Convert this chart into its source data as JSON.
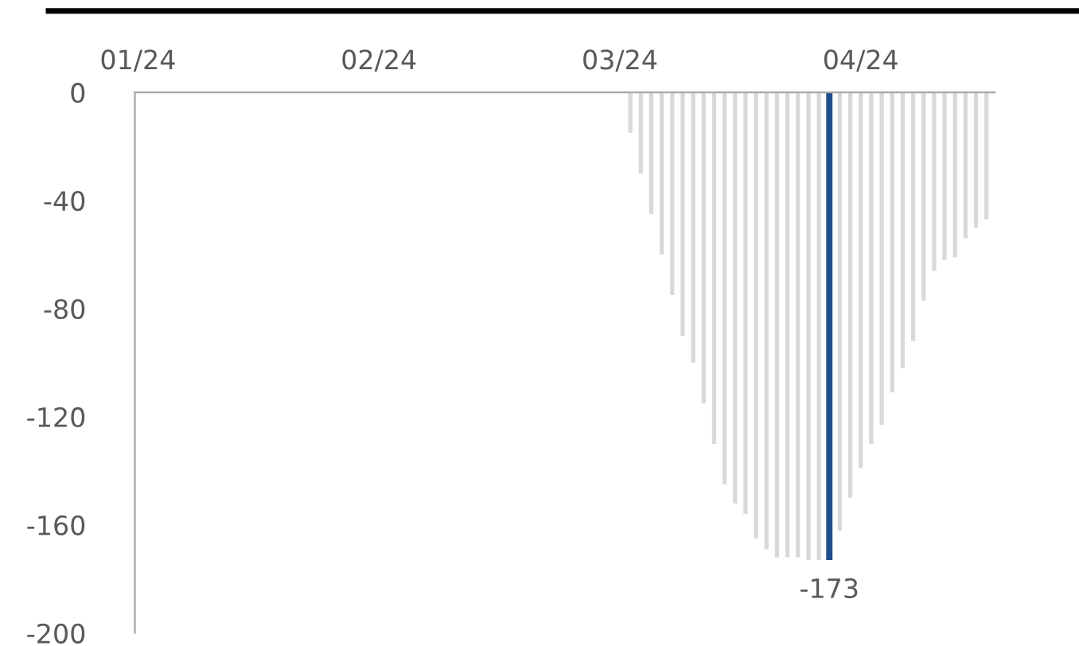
{
  "chart_data": {
    "type": "bar",
    "categories": [
      "01/24",
      null,
      null,
      null,
      null,
      null,
      null,
      null,
      null,
      null,
      null,
      null,
      null,
      null,
      null,
      null,
      null,
      null,
      null,
      null,
      null,
      null,
      null,
      "02/24",
      null,
      null,
      null,
      null,
      null,
      null,
      null,
      null,
      null,
      null,
      null,
      null,
      null,
      null,
      null,
      null,
      null,
      null,
      null,
      null,
      null,
      null,
      "03/24",
      null,
      null,
      null,
      null,
      null,
      null,
      null,
      null,
      null,
      null,
      null,
      null,
      null,
      null,
      null,
      null,
      null,
      null,
      null,
      null,
      null,
      null,
      "04/24",
      null,
      null,
      null,
      null,
      null,
      null,
      null,
      null,
      null,
      null,
      null,
      null
    ],
    "values": [
      null,
      null,
      null,
      null,
      null,
      null,
      null,
      null,
      null,
      null,
      null,
      null,
      null,
      null,
      null,
      null,
      null,
      null,
      null,
      null,
      null,
      null,
      null,
      null,
      null,
      null,
      null,
      null,
      null,
      null,
      null,
      null,
      null,
      null,
      null,
      null,
      null,
      null,
      null,
      null,
      null,
      null,
      null,
      null,
      null,
      null,
      null,
      -15,
      -30,
      -45,
      -60,
      -75,
      -90,
      -100,
      -115,
      -130,
      -145,
      -152,
      -156,
      -165,
      -169,
      -172,
      -172,
      -172,
      -173,
      -173,
      -173,
      -162,
      -150,
      -139,
      -130,
      -123,
      -111,
      -102,
      -92,
      -77,
      -66,
      -62,
      -61,
      -54,
      -50,
      -47
    ],
    "colors": [
      "#d9d9d9",
      "#d9d9d9",
      "#d9d9d9",
      "#d9d9d9",
      "#d9d9d9",
      "#d9d9d9",
      "#d9d9d9",
      "#d9d9d9",
      "#d9d9d9",
      "#d9d9d9",
      "#d9d9d9",
      "#d9d9d9",
      "#d9d9d9",
      "#d9d9d9",
      "#d9d9d9",
      "#d9d9d9",
      "#d9d9d9",
      "#d9d9d9",
      "#d9d9d9",
      "#d9d9d9",
      "#d9d9d9",
      "#d9d9d9",
      "#d9d9d9",
      "#d9d9d9",
      "#d9d9d9",
      "#d9d9d9",
      "#d9d9d9",
      "#d9d9d9",
      "#d9d9d9",
      "#d9d9d9",
      "#d9d9d9",
      "#d9d9d9",
      "#d9d9d9",
      "#d9d9d9",
      "#d9d9d9",
      "#d9d9d9",
      "#d9d9d9",
      "#d9d9d9",
      "#d9d9d9",
      "#d9d9d9",
      "#d9d9d9",
      "#d9d9d9",
      "#d9d9d9",
      "#d9d9d9",
      "#d9d9d9",
      "#d9d9d9",
      "#d9d9d9",
      "#d9d9d9",
      "#d9d9d9",
      "#d9d9d9",
      "#d9d9d9",
      "#d9d9d9",
      "#d9d9d9",
      "#d9d9d9",
      "#d9d9d9",
      "#d9d9d9",
      "#d9d9d9",
      "#d9d9d9",
      "#d9d9d9",
      "#d9d9d9",
      "#d9d9d9",
      "#d9d9d9",
      "#d9d9d9",
      "#d9d9d9",
      "#d9d9d9",
      "#d9d9d9",
      "#1f4e8c",
      "#d9d9d9",
      "#d9d9d9",
      "#d9d9d9",
      "#d9d9d9",
      "#d9d9d9",
      "#d9d9d9",
      "#d9d9d9",
      "#d9d9d9",
      "#d9d9d9",
      "#d9d9d9",
      "#d9d9d9",
      "#d9d9d9",
      "#d9d9d9",
      "#d9d9d9",
      "#d9d9d9"
    ],
    "value_labels": [
      null,
      null,
      null,
      null,
      null,
      null,
      null,
      null,
      null,
      null,
      null,
      null,
      null,
      null,
      null,
      null,
      null,
      null,
      null,
      null,
      null,
      null,
      null,
      null,
      null,
      null,
      null,
      null,
      null,
      null,
      null,
      null,
      null,
      null,
      null,
      null,
      null,
      null,
      null,
      null,
      null,
      null,
      null,
      null,
      null,
      null,
      null,
      null,
      null,
      null,
      null,
      null,
      null,
      null,
      null,
      null,
      null,
      null,
      null,
      null,
      null,
      null,
      null,
      null,
      null,
      null,
      "-173",
      null,
      null,
      null,
      null,
      null,
      null,
      null,
      null,
      null,
      null,
      null,
      null,
      null,
      null,
      null
    ],
    "ylim": [
      -200,
      0
    ],
    "yticks": [
      0,
      -40,
      -80,
      -120,
      -160,
      -200
    ],
    "grid": false,
    "legend": false
  }
}
